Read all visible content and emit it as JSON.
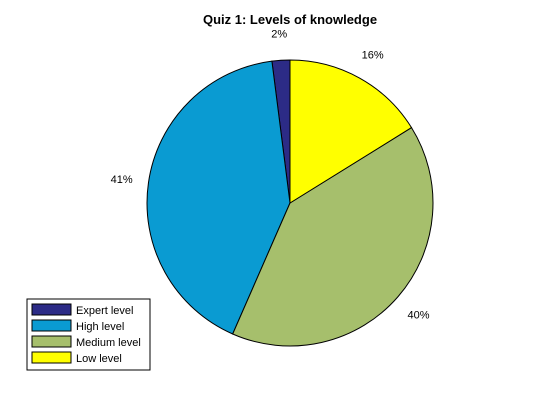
{
  "chart_data": {
    "type": "pie",
    "title": "Quiz 1: Levels of knowledge",
    "start": "12 o'clock",
    "direction": "counterclockwise",
    "slices": [
      {
        "name": "Expert level",
        "value": 2,
        "label": "2%",
        "color": "#2c2b86"
      },
      {
        "name": "High level",
        "value": 41,
        "label": "41%",
        "color": "#0a9bd2"
      },
      {
        "name": "Medium level",
        "value": 40,
        "label": "40%",
        "color": "#a6bf6c"
      },
      {
        "name": "Low level",
        "value": 16,
        "label": "16%",
        "color": "#ffff00"
      }
    ],
    "legend": {
      "position": "bottom-left"
    }
  }
}
